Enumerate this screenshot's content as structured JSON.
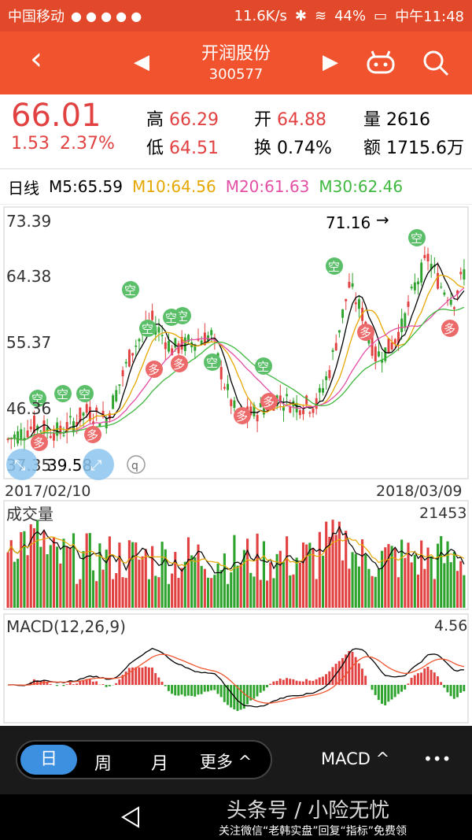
{
  "status": {
    "carrier": "中国移动",
    "speed": "11.6K/s",
    "battery": "44%",
    "time": "中午11:48"
  },
  "header": {
    "stock_name": "开润股份",
    "stock_code": "300577"
  },
  "quote": {
    "price": "66.01",
    "change": "1.53",
    "change_pct": "2.37%",
    "high_label": "高",
    "high": "66.29",
    "low_label": "低",
    "low": "64.51",
    "open_label": "开",
    "open": "64.88",
    "turnover_label": "换",
    "turnover": "0.74%",
    "volume_label": "量",
    "volume": "2616",
    "amount_label": "额",
    "amount": "1715.6万"
  },
  "ma_line": {
    "period": "日线",
    "m5": "M5:65.59",
    "m10": "M10:64.56",
    "m20": "M20:61.63",
    "m30": "M30:62.46"
  },
  "kline": {
    "y_labels": [
      "73.39",
      "64.38",
      "55.37",
      "46.36",
      "37.35"
    ],
    "max_marker": "71.16",
    "min_marker": "39.58",
    "start_date": "2017/02/10",
    "end_date": "2018/03/09",
    "badge_kong": "空",
    "badge_duo": "多"
  },
  "volume_panel": {
    "title": "成交量",
    "max": "21453"
  },
  "macd_panel": {
    "title": "MACD(12,26,9)",
    "max": "4.56"
  },
  "bottom": {
    "tab_day": "日",
    "tab_week": "周",
    "tab_month": "月",
    "more": "更多 ^",
    "indicator": "MACD ^",
    "dots": "•••"
  },
  "watermark": {
    "line1": "头条号 / 小险无忧",
    "line2": "关注微信“老韩实盘”回复“指标”免费领"
  },
  "colors": {
    "up": "#e24141",
    "down": "#2ea32e",
    "header": "#f0532e",
    "ma5": "#000000",
    "ma10": "#e6a700",
    "ma20": "#e44fa6",
    "ma30": "#3fb83f"
  }
}
